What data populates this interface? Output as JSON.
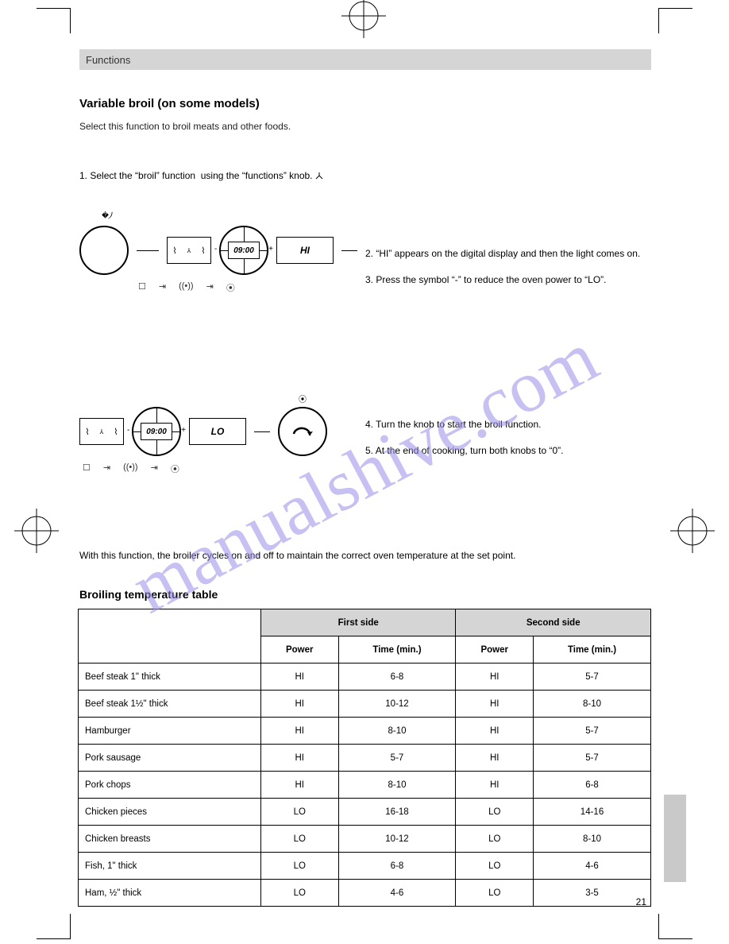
{
  "page": {
    "header": "Functions",
    "section_title": "Variable broil (on some models)",
    "lead": "Select this function to broil meats and other foods.",
    "step1_num": "1.",
    "step1_text": "Select the “broil” function  using the “functions” knob.",
    "panel1_readout": "09:00",
    "panel1_side": "HI",
    "step2a_num": "2.",
    "step2a_text": "“HI” appears on the digital display and then the light comes on.",
    "step2b_num": "3.",
    "step2b_text": "Press the symbol “-” to reduce the oven power to “LO”.",
    "panel2_readout": "09:00",
    "panel2_side": "LO",
    "step4_num": "4.",
    "step4_text": "Turn the knob to start the broil function.",
    "step5_num": "5.",
    "step5_text": "At the end of cooking, turn both knobs to “0”.",
    "after": "With this function, the broiler cycles on and off to maintain the correct oven temperature at the set point.",
    "table_title": "Broiling temperature table",
    "page_number": "21",
    "watermark": "manualshive.com"
  },
  "table": {
    "col_food": "",
    "group1": "First side",
    "group2": "Second side",
    "sub_power": "Power",
    "sub_time": "Time (min.)",
    "rows": [
      {
        "food": "Beef steak 1\" thick",
        "p1": "HI",
        "t1": "6-8",
        "p2": "HI",
        "t2": "5-7"
      },
      {
        "food": "Beef steak 1½\" thick",
        "p1": "HI",
        "t1": "10-12",
        "p2": "HI",
        "t2": "8-10"
      },
      {
        "food": "Hamburger",
        "p1": "HI",
        "t1": "8-10",
        "p2": "HI",
        "t2": "5-7"
      },
      {
        "food": "Pork sausage",
        "p1": "HI",
        "t1": "5-7",
        "p2": "HI",
        "t2": "5-7"
      },
      {
        "food": "Pork chops",
        "p1": "HI",
        "t1": "8-10",
        "p2": "HI",
        "t2": "6-8"
      },
      {
        "food": "Chicken pieces",
        "p1": "LO",
        "t1": "16-18",
        "p2": "LO",
        "t2": "14-16"
      },
      {
        "food": "Chicken breasts",
        "p1": "LO",
        "t1": "10-12",
        "p2": "LO",
        "t2": "8-10"
      },
      {
        "food": "Fish, 1\" thick",
        "p1": "LO",
        "t1": "6-8",
        "p2": "LO",
        "t2": "4-6"
      },
      {
        "food": "Ham, ½\" thick",
        "p1": "LO",
        "t1": "4-6",
        "p2": "LO",
        "t2": "3-5"
      }
    ]
  },
  "style": {
    "header_bg": "#d5d5d5",
    "watermark_color": "#9a8ee8",
    "text_color": "#222222",
    "border_color": "#000000",
    "body_font_pt": 12,
    "heading_font_pt": 15,
    "table_font_pt": 11.5,
    "watermark_font_pt": 92
  }
}
